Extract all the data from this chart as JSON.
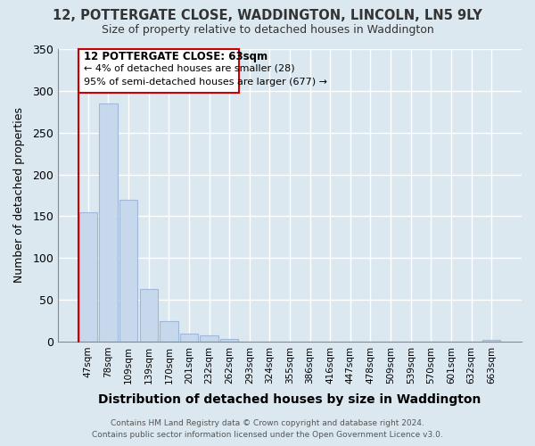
{
  "title": "12, POTTERGATE CLOSE, WADDINGTON, LINCOLN, LN5 9LY",
  "subtitle": "Size of property relative to detached houses in Waddington",
  "xlabel": "Distribution of detached houses by size in Waddington",
  "ylabel": "Number of detached properties",
  "bar_labels": [
    "47sqm",
    "78sqm",
    "109sqm",
    "139sqm",
    "170sqm",
    "201sqm",
    "232sqm",
    "262sqm",
    "293sqm",
    "324sqm",
    "355sqm",
    "386sqm",
    "416sqm",
    "447sqm",
    "478sqm",
    "509sqm",
    "539sqm",
    "570sqm",
    "601sqm",
    "632sqm",
    "663sqm"
  ],
  "bar_values": [
    155,
    285,
    170,
    63,
    24,
    10,
    7,
    3,
    0,
    0,
    0,
    0,
    0,
    0,
    0,
    0,
    0,
    0,
    0,
    0,
    2
  ],
  "bar_color": "#c8d8ec",
  "bar_edge_color": "#a0b8d8",
  "ylim": [
    0,
    350
  ],
  "yticks": [
    0,
    50,
    100,
    150,
    200,
    250,
    300,
    350
  ],
  "annotation_box_title": "12 POTTERGATE CLOSE: 63sqm",
  "annotation_line1": "← 4% of detached houses are smaller (28)",
  "annotation_line2": "95% of semi-detached houses are larger (677) →",
  "annotation_box_color": "#cc0000",
  "footer_line1": "Contains HM Land Registry data © Crown copyright and database right 2024.",
  "footer_line2": "Contains public sector information licensed under the Open Government Licence v3.0.",
  "bg_color": "#dce8f0",
  "plot_bg_color": "#dce8f0",
  "grid_color": "#ffffff"
}
